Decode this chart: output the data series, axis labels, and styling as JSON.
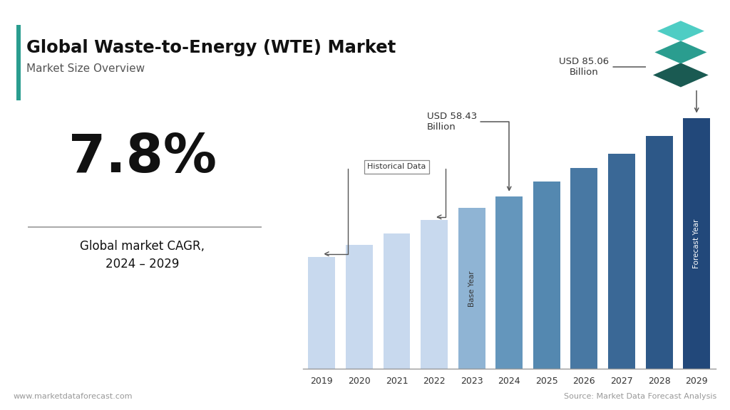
{
  "title": "Global Waste-to-Energy (WTE) Market",
  "subtitle": "Market Size Overview",
  "cagr": "7.8%",
  "cagr_label": "Global market CAGR,\n2024 – 2029",
  "years": [
    2019,
    2020,
    2021,
    2022,
    2023,
    2024,
    2025,
    2026,
    2027,
    2028,
    2029
  ],
  "values": [
    38.0,
    42.0,
    46.0,
    50.5,
    54.5,
    58.43,
    63.5,
    68.0,
    73.0,
    79.0,
    85.06
  ],
  "bar_colors": [
    "#c8d9ee",
    "#c8d9ee",
    "#c8d9ee",
    "#c8d9ee",
    "#8fb4d4",
    "#6496bc",
    "#5488b0",
    "#4878a3",
    "#3a6896",
    "#2d5888",
    "#22487a"
  ],
  "annotation_2024_text": "USD 58.43\nBillion",
  "annotation_2029_text": "USD 85.06\nBillion",
  "historical_label": "Historical Data",
  "base_year_label": "Base Year",
  "forecast_year_label": "Forecast Year",
  "source_text": "Source: Market Data Forecast Analysis",
  "website_text": "www.marketdataforecast.com",
  "background_color": "#ffffff",
  "title_color": "#111111",
  "subtitle_color": "#555555",
  "accent_color": "#2a9d8f",
  "teal_bar_color": "#2a9d8f",
  "ylim": [
    0,
    100
  ],
  "arrow_color": "#555555"
}
